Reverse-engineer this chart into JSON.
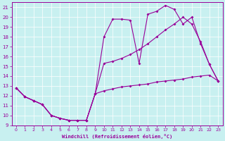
{
  "xlabel": "Windchill (Refroidissement éolien,°C)",
  "bg_color": "#c8f0f0",
  "line_color": "#990099",
  "xlim": [
    -0.5,
    23.5
  ],
  "ylim": [
    9,
    21.5
  ],
  "xticks": [
    0,
    1,
    2,
    3,
    4,
    5,
    6,
    7,
    8,
    9,
    10,
    11,
    12,
    13,
    14,
    15,
    16,
    17,
    18,
    19,
    20,
    21,
    22,
    23
  ],
  "yticks": [
    9,
    10,
    11,
    12,
    13,
    14,
    15,
    16,
    17,
    18,
    19,
    20,
    21
  ],
  "line1_x": [
    0,
    1,
    2,
    3,
    4,
    5,
    6,
    7,
    8,
    9,
    10,
    11,
    12,
    13,
    14,
    15,
    16,
    17,
    18,
    19,
    20,
    21,
    22,
    23
  ],
  "line1_y": [
    12.8,
    11.9,
    11.5,
    11.1,
    10.0,
    9.7,
    9.5,
    9.5,
    9.5,
    12.2,
    12.5,
    12.7,
    12.9,
    13.0,
    13.1,
    13.2,
    13.4,
    13.5,
    13.6,
    13.7,
    13.9,
    14.0,
    14.1,
    13.5
  ],
  "line2_x": [
    0,
    1,
    2,
    3,
    4,
    5,
    6,
    7,
    8,
    9,
    10,
    11,
    12,
    13,
    14,
    15,
    16,
    17,
    18,
    19,
    20,
    21,
    22,
    23
  ],
  "line2_y": [
    12.8,
    11.9,
    11.5,
    11.1,
    10.0,
    9.7,
    9.5,
    9.5,
    9.5,
    12.2,
    15.3,
    15.5,
    15.8,
    16.2,
    16.7,
    17.3,
    18.0,
    18.7,
    19.3,
    20.0,
    19.3,
    17.5,
    15.2,
    13.5
  ],
  "line3_x": [
    0,
    1,
    2,
    3,
    4,
    5,
    6,
    7,
    8,
    9,
    10,
    11,
    12,
    13,
    14,
    15,
    16,
    17,
    18,
    19,
    20,
    21,
    22,
    23
  ],
  "line3_y": [
    12.8,
    11.9,
    11.5,
    11.1,
    10.0,
    9.7,
    9.5,
    9.5,
    9.5,
    12.2,
    18.0,
    19.8,
    19.8,
    19.7,
    15.3,
    20.3,
    20.6,
    21.2,
    20.8,
    19.3,
    20.0,
    17.3,
    15.2,
    13.5
  ]
}
